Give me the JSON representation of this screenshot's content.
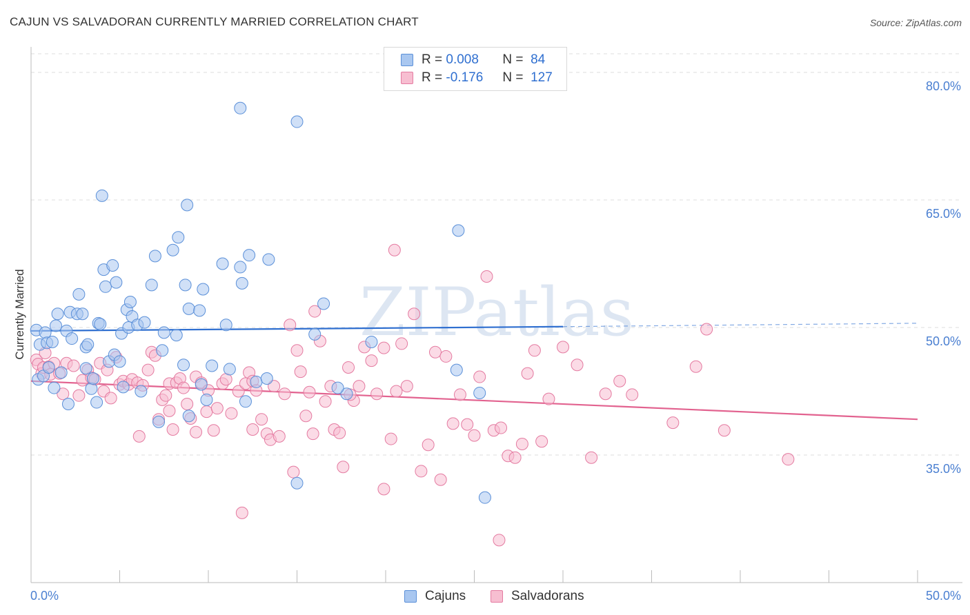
{
  "title": "CAJUN VS SALVADORAN CURRENTLY MARRIED CORRELATION CHART",
  "source": "Source: ZipAtlas.com",
  "watermark": "ZIPatlas",
  "legend": {
    "rows": [
      {
        "r_label": "R =",
        "r_value": "0.008",
        "n_label": "N =",
        "n_value": "84"
      },
      {
        "r_label": "R =",
        "r_value": "-0.176",
        "n_label": "N =",
        "n_value": "127"
      }
    ]
  },
  "bottom_legend": {
    "cajuns": "Cajuns",
    "salvadorans": "Salvadorans"
  },
  "colors": {
    "cajun_fill": "#a9c7f0",
    "cajun_stroke": "#5a8fd8",
    "cajun_line": "#2f6fd0",
    "salv_fill": "#f7bed1",
    "salv_stroke": "#e47aa0",
    "salv_line": "#e2628f",
    "tick_text": "#4a7fd1",
    "grid": "#dddddd"
  },
  "chart_data": {
    "type": "scatter",
    "title": "CAJUN VS SALVADORAN CURRENTLY MARRIED CORRELATION CHART",
    "xlabel": "",
    "ylabel": "Currently Married",
    "xlim": [
      0,
      50
    ],
    "ylim": [
      20,
      83
    ],
    "x_tick_labels": [
      "0.0%",
      "50.0%"
    ],
    "y_ticks": [
      35,
      50,
      65,
      80
    ],
    "y_tick_labels": [
      "35.0%",
      "50.0%",
      "65.0%",
      "80.0%"
    ],
    "grid": true,
    "legend_position": "top-center",
    "series": [
      {
        "name": "Cajuns",
        "r": 0.008,
        "n": 84,
        "trend": {
          "x0": 0,
          "y0": 49.6,
          "x1": 30,
          "y1": 50.1,
          "dash_to_x": 50,
          "dash_to_y": 50.5
        },
        "points": [
          [
            0.3,
            49.7
          ],
          [
            0.5,
            48.0
          ],
          [
            0.8,
            49.4
          ],
          [
            0.9,
            48.2
          ],
          [
            1.2,
            48.3
          ],
          [
            1.5,
            51.6
          ],
          [
            1.4,
            50.2
          ],
          [
            2.0,
            49.6
          ],
          [
            2.3,
            48.7
          ],
          [
            2.2,
            51.8
          ],
          [
            2.6,
            51.6
          ],
          [
            2.9,
            51.6
          ],
          [
            2.7,
            53.9
          ],
          [
            3.1,
            47.7
          ],
          [
            3.2,
            48.0
          ],
          [
            3.1,
            45.2
          ],
          [
            3.4,
            42.8
          ],
          [
            3.5,
            44.0
          ],
          [
            3.7,
            41.2
          ],
          [
            3.8,
            50.5
          ],
          [
            3.9,
            50.4
          ],
          [
            4.0,
            65.5
          ],
          [
            4.1,
            56.8
          ],
          [
            4.2,
            54.8
          ],
          [
            4.4,
            46.0
          ],
          [
            4.6,
            57.3
          ],
          [
            4.7,
            46.8
          ],
          [
            4.8,
            55.3
          ],
          [
            5.0,
            46.0
          ],
          [
            5.1,
            49.3
          ],
          [
            5.2,
            43.0
          ],
          [
            5.4,
            52.1
          ],
          [
            5.5,
            50.0
          ],
          [
            5.6,
            53.0
          ],
          [
            5.7,
            51.3
          ],
          [
            6.0,
            50.3
          ],
          [
            6.2,
            42.5
          ],
          [
            6.4,
            50.6
          ],
          [
            6.8,
            55.0
          ],
          [
            7.0,
            58.4
          ],
          [
            7.4,
            47.3
          ],
          [
            7.2,
            38.9
          ],
          [
            7.5,
            49.4
          ],
          [
            8.0,
            59.1
          ],
          [
            8.2,
            49.1
          ],
          [
            8.3,
            60.6
          ],
          [
            8.6,
            45.6
          ],
          [
            8.7,
            55.0
          ],
          [
            8.9,
            52.2
          ],
          [
            8.9,
            39.6
          ],
          [
            8.8,
            64.4
          ],
          [
            9.5,
            52.0
          ],
          [
            9.6,
            43.3
          ],
          [
            9.7,
            54.5
          ],
          [
            9.9,
            41.5
          ],
          [
            10.2,
            45.5
          ],
          [
            10.8,
            57.5
          ],
          [
            11.0,
            50.3
          ],
          [
            11.2,
            45.1
          ],
          [
            11.8,
            57.1
          ],
          [
            11.8,
            75.8
          ],
          [
            11.9,
            55.2
          ],
          [
            12.3,
            58.5
          ],
          [
            12.7,
            43.6
          ],
          [
            13.3,
            44.0
          ],
          [
            13.4,
            58.0
          ],
          [
            15.0,
            74.2
          ],
          [
            15.0,
            31.7
          ],
          [
            16.5,
            52.8
          ],
          [
            17.8,
            42.2
          ],
          [
            17.3,
            42.9
          ],
          [
            24.1,
            61.4
          ],
          [
            25.3,
            42.3
          ],
          [
            25.6,
            30.0
          ],
          [
            0.4,
            43.9
          ],
          [
            0.7,
            44.3
          ],
          [
            1.0,
            45.3
          ],
          [
            1.3,
            42.9
          ],
          [
            1.7,
            44.7
          ],
          [
            2.1,
            41.0
          ],
          [
            12.1,
            41.3
          ],
          [
            16.0,
            49.2
          ],
          [
            19.2,
            48.3
          ],
          [
            24.0,
            45.0
          ]
        ]
      },
      {
        "name": "Salvadorans",
        "r": -0.176,
        "n": 127,
        "trend": {
          "x0": 0,
          "y0": 43.7,
          "x1": 50,
          "y1": 39.2
        },
        "points": [
          [
            0.3,
            46.2
          ],
          [
            0.4,
            45.7
          ],
          [
            0.6,
            44.6
          ],
          [
            0.7,
            45.3
          ],
          [
            0.8,
            47.0
          ],
          [
            1.0,
            45.4
          ],
          [
            1.1,
            44.5
          ],
          [
            1.3,
            45.8
          ],
          [
            1.6,
            44.6
          ],
          [
            1.8,
            42.2
          ],
          [
            2.0,
            45.8
          ],
          [
            2.4,
            45.5
          ],
          [
            2.7,
            42.0
          ],
          [
            2.9,
            43.8
          ],
          [
            3.2,
            45.0
          ],
          [
            3.4,
            44.1
          ],
          [
            3.6,
            43.9
          ],
          [
            3.9,
            45.8
          ],
          [
            4.1,
            42.5
          ],
          [
            4.3,
            45.0
          ],
          [
            4.5,
            41.7
          ],
          [
            4.8,
            46.5
          ],
          [
            5.0,
            43.3
          ],
          [
            5.2,
            43.7
          ],
          [
            5.5,
            43.3
          ],
          [
            5.7,
            43.9
          ],
          [
            6.0,
            43.5
          ],
          [
            6.3,
            43.2
          ],
          [
            6.6,
            45.0
          ],
          [
            6.8,
            47.1
          ],
          [
            7.0,
            46.7
          ],
          [
            7.2,
            39.2
          ],
          [
            7.4,
            41.5
          ],
          [
            7.6,
            42.0
          ],
          [
            7.8,
            43.4
          ],
          [
            8.0,
            38.0
          ],
          [
            8.2,
            43.5
          ],
          [
            8.4,
            44.0
          ],
          [
            8.6,
            42.9
          ],
          [
            8.8,
            41.0
          ],
          [
            9.0,
            39.3
          ],
          [
            9.3,
            44.2
          ],
          [
            9.6,
            43.5
          ],
          [
            9.9,
            40.1
          ],
          [
            10.0,
            42.6
          ],
          [
            10.3,
            37.9
          ],
          [
            10.5,
            40.5
          ],
          [
            10.8,
            43.4
          ],
          [
            11.0,
            43.9
          ],
          [
            11.3,
            39.9
          ],
          [
            11.7,
            42.5
          ],
          [
            11.9,
            28.2
          ],
          [
            12.1,
            43.4
          ],
          [
            12.3,
            44.7
          ],
          [
            12.5,
            43.7
          ],
          [
            12.7,
            42.6
          ],
          [
            13.0,
            39.2
          ],
          [
            13.3,
            37.5
          ],
          [
            13.5,
            36.8
          ],
          [
            13.7,
            43.1
          ],
          [
            14.0,
            37.2
          ],
          [
            14.3,
            42.2
          ],
          [
            14.6,
            50.3
          ],
          [
            14.8,
            33.0
          ],
          [
            15.0,
            47.3
          ],
          [
            15.2,
            44.8
          ],
          [
            15.5,
            39.6
          ],
          [
            15.7,
            42.4
          ],
          [
            16.0,
            51.9
          ],
          [
            16.3,
            48.4
          ],
          [
            16.6,
            41.3
          ],
          [
            16.9,
            43.1
          ],
          [
            17.1,
            38.0
          ],
          [
            17.4,
            37.6
          ],
          [
            17.6,
            33.6
          ],
          [
            17.9,
            45.3
          ],
          [
            18.2,
            41.4
          ],
          [
            18.5,
            43.1
          ],
          [
            18.8,
            47.7
          ],
          [
            19.2,
            46.1
          ],
          [
            19.5,
            42.2
          ],
          [
            19.9,
            47.6
          ],
          [
            20.3,
            36.9
          ],
          [
            20.6,
            42.5
          ],
          [
            20.9,
            48.1
          ],
          [
            21.2,
            43.1
          ],
          [
            21.6,
            51.6
          ],
          [
            22.0,
            33.1
          ],
          [
            22.4,
            36.2
          ],
          [
            22.8,
            47.1
          ],
          [
            23.1,
            32.1
          ],
          [
            23.4,
            46.6
          ],
          [
            23.8,
            38.7
          ],
          [
            24.2,
            42.1
          ],
          [
            24.6,
            38.6
          ],
          [
            25.0,
            37.3
          ],
          [
            25.3,
            44.2
          ],
          [
            25.7,
            56.0
          ],
          [
            26.1,
            37.9
          ],
          [
            26.5,
            38.2
          ],
          [
            26.9,
            34.9
          ],
          [
            27.3,
            34.7
          ],
          [
            27.7,
            36.3
          ],
          [
            28.0,
            44.6
          ],
          [
            28.4,
            47.3
          ],
          [
            28.8,
            36.6
          ],
          [
            29.2,
            41.6
          ],
          [
            30.0,
            47.7
          ],
          [
            30.8,
            45.6
          ],
          [
            31.6,
            34.7
          ],
          [
            32.4,
            42.2
          ],
          [
            33.2,
            43.7
          ],
          [
            33.9,
            42.1
          ],
          [
            36.2,
            38.8
          ],
          [
            37.5,
            45.4
          ],
          [
            38.1,
            49.8
          ],
          [
            39.1,
            37.9
          ],
          [
            42.7,
            34.5
          ],
          [
            20.5,
            59.1
          ],
          [
            19.9,
            31.0
          ],
          [
            18.0,
            42.1
          ],
          [
            26.4,
            25.0
          ],
          [
            15.9,
            37.5
          ],
          [
            12.5,
            38.0
          ],
          [
            9.3,
            37.7
          ],
          [
            7.8,
            40.2
          ],
          [
            6.1,
            37.2
          ]
        ]
      }
    ]
  }
}
